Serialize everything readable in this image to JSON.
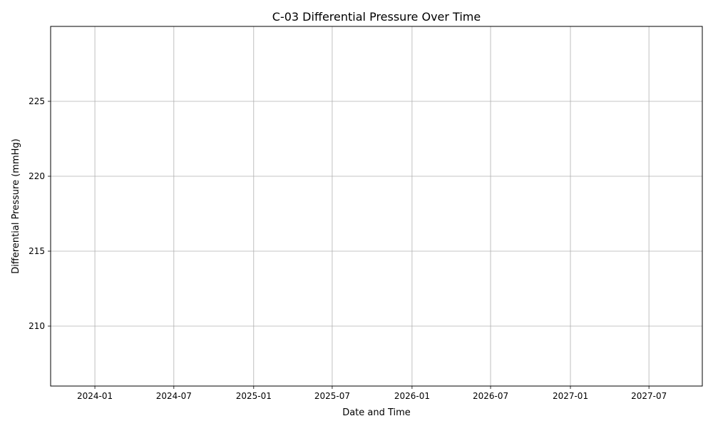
{
  "chart_data": {
    "type": "line",
    "title": "C-03 Differential Pressure Over Time",
    "xlabel": "Date and Time",
    "ylabel": "Differential Pressure (mmHg)",
    "x_axis_type": "date",
    "xlim": [
      "2023-09-21",
      "2027-11-01"
    ],
    "ylim": [
      206,
      230
    ],
    "x_ticks": [
      "2024-01",
      "2024-07",
      "2025-01",
      "2025-07",
      "2026-01",
      "2026-07",
      "2027-01",
      "2027-07"
    ],
    "y_ticks": [
      210,
      215,
      220,
      225
    ],
    "grid": true,
    "series": []
  }
}
